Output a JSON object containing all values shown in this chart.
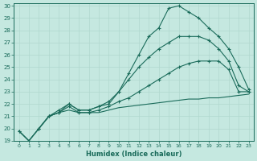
{
  "xlabel": "Humidex (Indice chaleur)",
  "xlim": [
    -0.5,
    23.5
  ],
  "ylim": [
    19,
    30.2
  ],
  "xticks": [
    0,
    1,
    2,
    3,
    4,
    5,
    6,
    7,
    8,
    9,
    10,
    11,
    12,
    13,
    14,
    15,
    16,
    17,
    18,
    19,
    20,
    21,
    22,
    23
  ],
  "yticks": [
    19,
    20,
    21,
    22,
    23,
    24,
    25,
    26,
    27,
    28,
    29,
    30
  ],
  "bg_color": "#c5e8e0",
  "line_color": "#1a6b5a",
  "grid_color": "#b0d8ce",
  "curves": [
    {
      "x": [
        0,
        1,
        2,
        3,
        4,
        5,
        6,
        7,
        8,
        9,
        10,
        11,
        12,
        13,
        14,
        15,
        16,
        17,
        18,
        19,
        20,
        21,
        22,
        23
      ],
      "y": [
        19.8,
        19.0,
        20.0,
        21.0,
        21.3,
        21.5,
        21.3,
        21.3,
        21.3,
        21.5,
        21.7,
        21.8,
        21.9,
        22.0,
        22.1,
        22.2,
        22.3,
        22.4,
        22.4,
        22.5,
        22.5,
        22.6,
        22.7,
        22.8
      ],
      "has_markers": false
    },
    {
      "x": [
        0,
        1,
        2,
        3,
        4,
        5,
        6,
        7,
        8,
        9,
        10,
        11,
        12,
        13,
        14,
        15,
        16,
        17,
        18,
        19,
        20,
        21,
        22,
        23
      ],
      "y": [
        19.8,
        19.0,
        20.0,
        21.0,
        21.3,
        21.8,
        21.3,
        21.3,
        21.5,
        21.8,
        22.2,
        22.5,
        23.0,
        23.5,
        24.0,
        24.5,
        25.0,
        25.3,
        25.5,
        25.5,
        25.5,
        24.8,
        23.0,
        23.0
      ],
      "has_markers": true
    },
    {
      "x": [
        0,
        1,
        2,
        3,
        4,
        5,
        6,
        7,
        8,
        9,
        10,
        11,
        12,
        13,
        14,
        15,
        16,
        17,
        18,
        19,
        20,
        21,
        22,
        23
      ],
      "y": [
        19.8,
        19.0,
        20.0,
        21.0,
        21.3,
        22.0,
        21.5,
        21.5,
        21.8,
        22.2,
        23.0,
        24.0,
        25.0,
        25.8,
        26.5,
        27.0,
        27.5,
        27.5,
        27.5,
        27.2,
        26.5,
        25.5,
        23.5,
        23.0
      ],
      "has_markers": true
    },
    {
      "x": [
        2,
        3,
        4,
        5,
        6,
        7,
        8,
        9,
        10,
        11,
        12,
        13,
        14,
        15,
        16,
        17,
        18,
        19,
        20,
        21,
        22,
        23
      ],
      "y": [
        20.0,
        21.0,
        21.5,
        22.0,
        21.5,
        21.5,
        21.8,
        22.0,
        23.0,
        24.5,
        26.0,
        27.5,
        28.2,
        29.8,
        30.0,
        29.5,
        29.0,
        28.2,
        27.5,
        26.5,
        25.0,
        23.2
      ],
      "has_markers": true
    }
  ]
}
